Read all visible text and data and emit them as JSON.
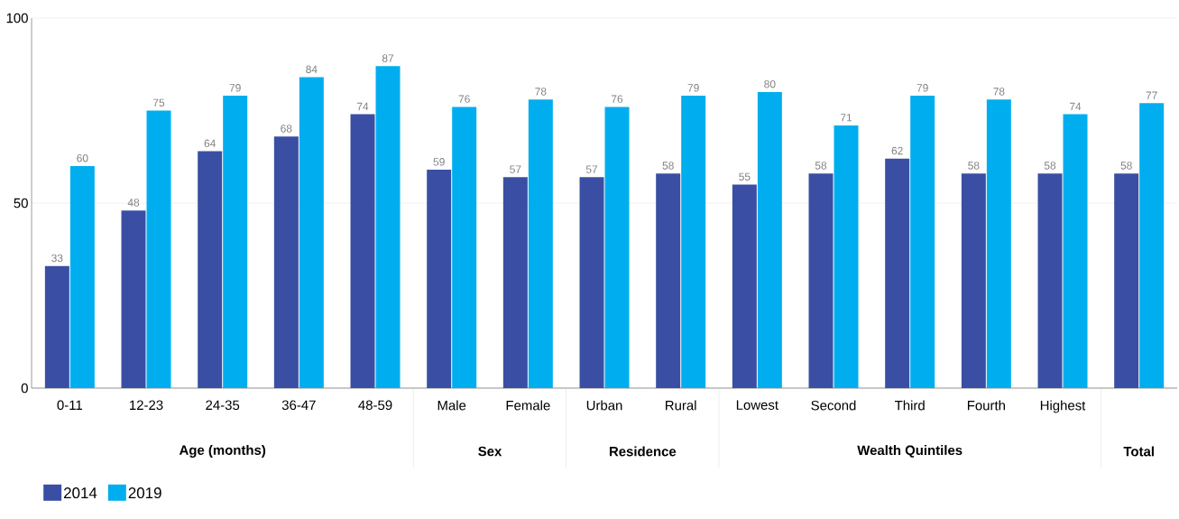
{
  "chart_data": {
    "type": "bar",
    "categories": [
      "0-11",
      "12-23",
      "24-35",
      "36-47",
      "48-59",
      "Male",
      "Female",
      "Urban",
      "Rural",
      "Lowest",
      "Second",
      "Third",
      "Fourth",
      "Highest",
      null
    ],
    "series": [
      {
        "name": "2014",
        "color": "#3a4fa3",
        "values": [
          33,
          48,
          64,
          68,
          74,
          59,
          57,
          57,
          58,
          55,
          58,
          62,
          58,
          58,
          58
        ]
      },
      {
        "name": "2019",
        "color": "#00aeef",
        "values": [
          60,
          75,
          79,
          84,
          87,
          76,
          78,
          76,
          79,
          80,
          71,
          79,
          78,
          74,
          77
        ]
      }
    ],
    "annotations": [
      "Age (months)",
      "Sex",
      "Residence",
      "Wealth Quintiles",
      "Total"
    ],
    "ylim": [
      0,
      100
    ],
    "yticks": [
      0,
      50,
      100
    ],
    "grid": "y",
    "legend": "bottom left",
    "data_labels": true
  }
}
